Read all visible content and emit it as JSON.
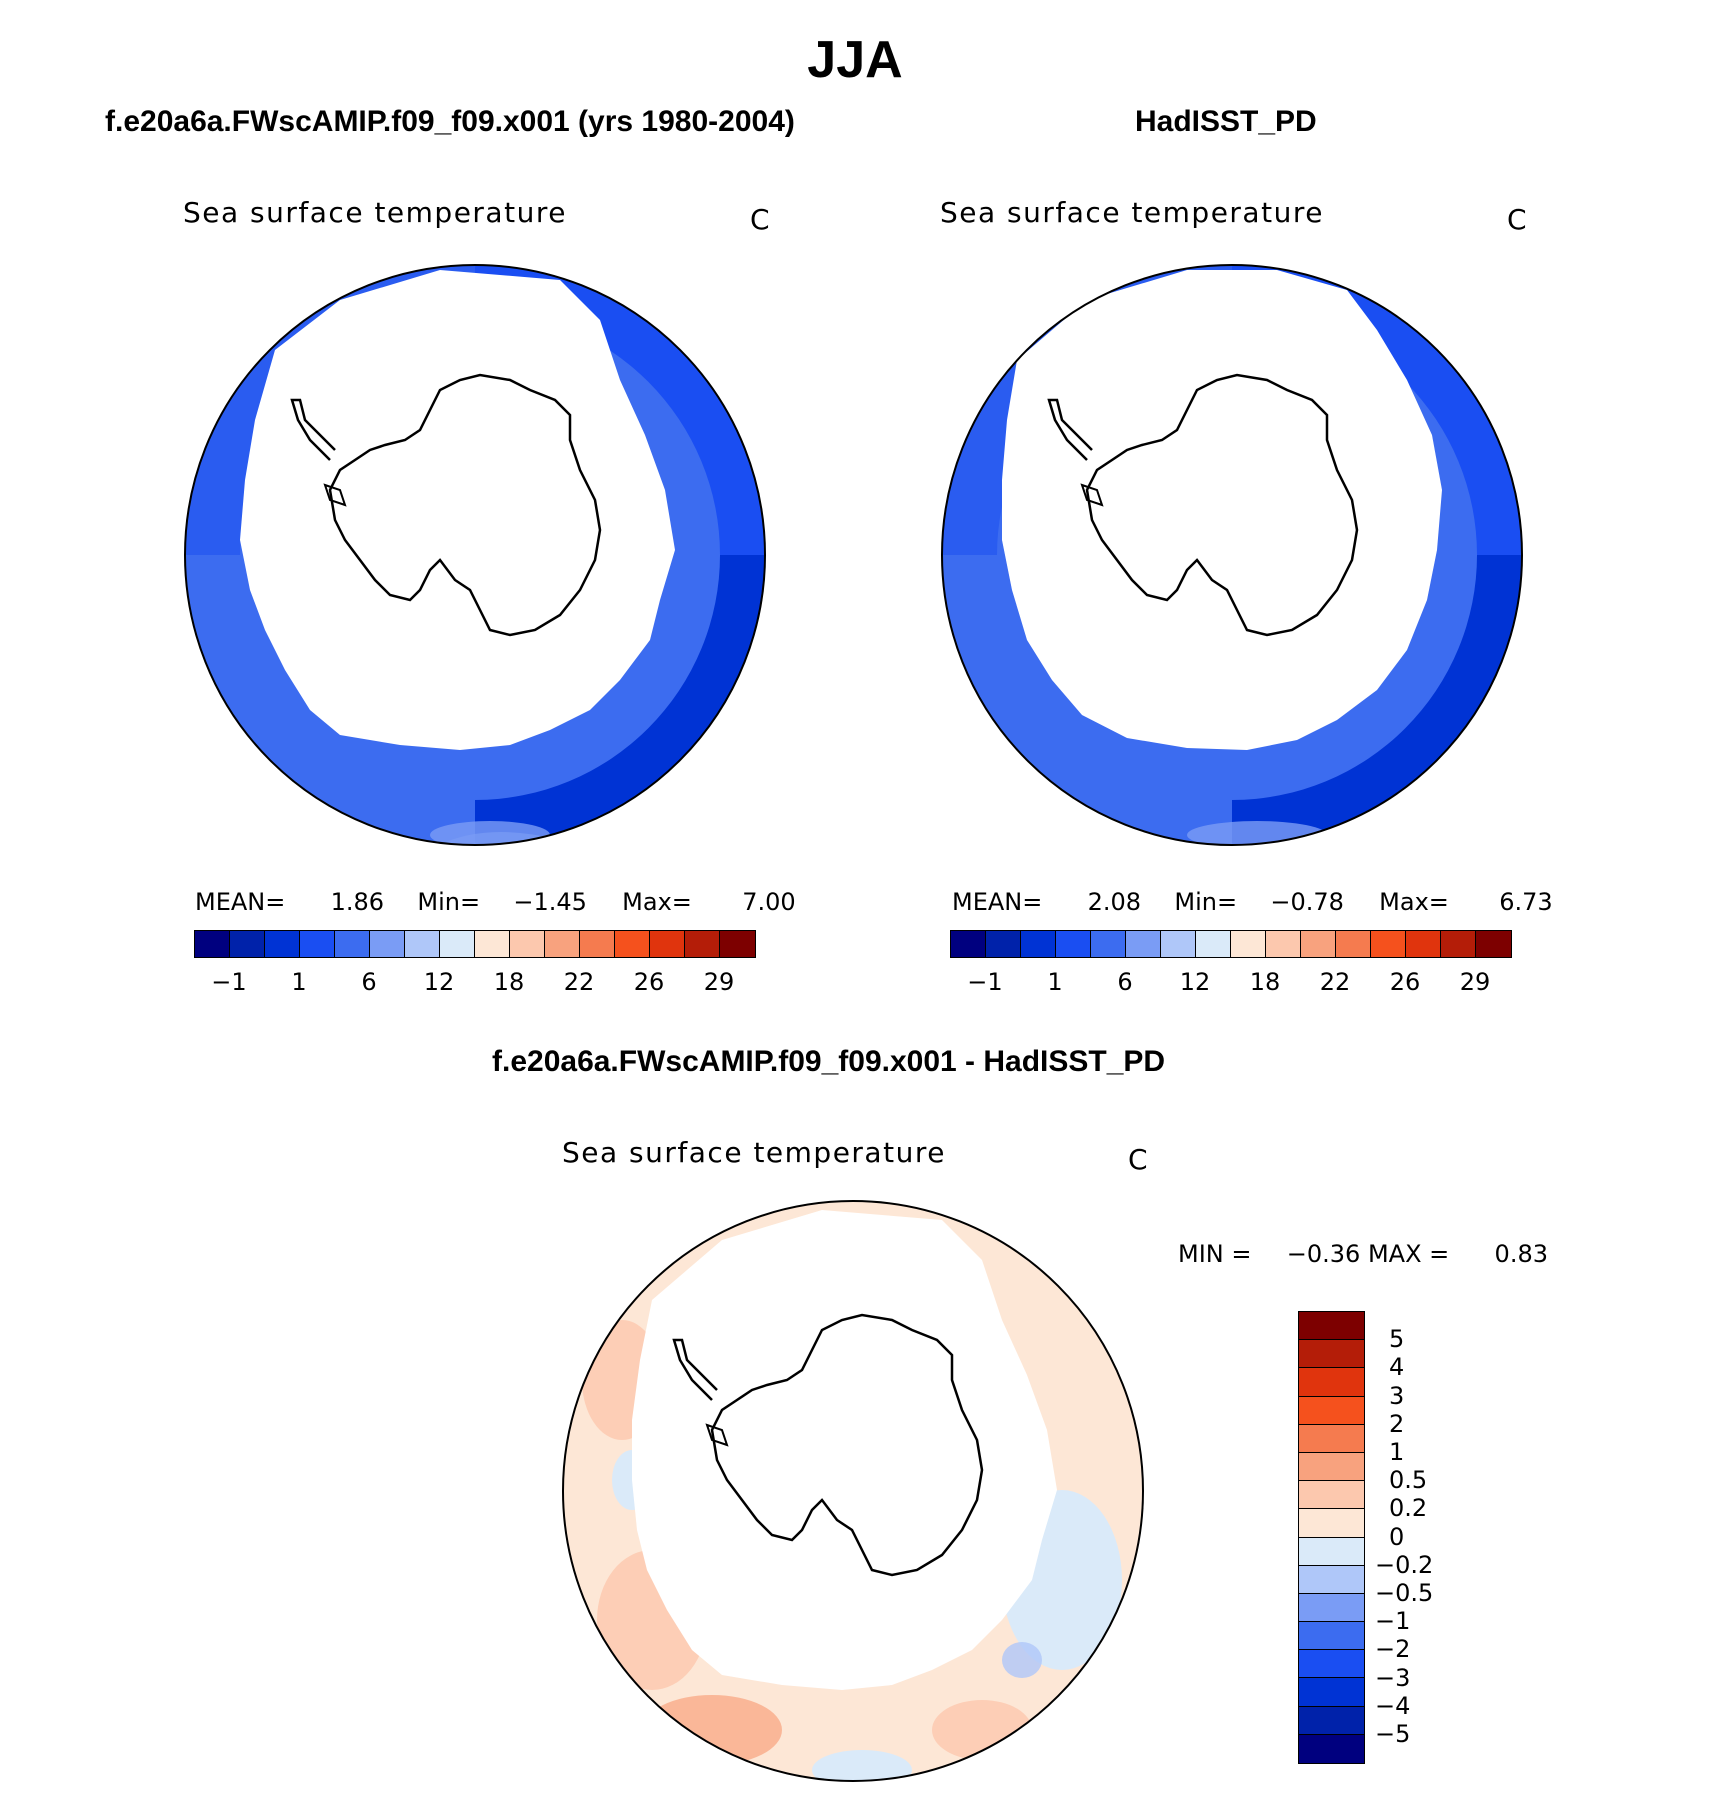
{
  "title": "JJA",
  "panels": {
    "model": {
      "case_title": "f.e20a6a.FWscAMIP.f09_f09.x001 (yrs 1980-2004)",
      "variable": "Sea surface temperature",
      "units": "C",
      "stats": {
        "mean_label": "MEAN=",
        "mean": "1.86",
        "min_label": "Min=",
        "min": "−1.45",
        "max_label": "Max=",
        "max": "7.00"
      }
    },
    "obs": {
      "case_title": "HadISST_PD",
      "variable": "Sea surface temperature",
      "units": "C",
      "stats": {
        "mean_label": "MEAN=",
        "mean": "2.08",
        "min_label": "Min=",
        "min": "−0.78",
        "max_label": "Max=",
        "max": "6.73"
      }
    },
    "diff": {
      "case_title": "f.e20a6a.FWscAMIP.f09_f09.x001 - HadISST_PD",
      "variable": "Sea surface temperature",
      "units": "C",
      "stats": {
        "min_label": "MIN =",
        "min": "−0.36",
        "max_label": "MAX =",
        "max": "0.83"
      }
    }
  },
  "colorbars": {
    "abs": {
      "colors": [
        "#00007f",
        "#0022aa",
        "#0033d4",
        "#1a4ef2",
        "#3c6cf0",
        "#7a9cf5",
        "#afc7f9",
        "#daeaf9",
        "#fde7d6",
        "#fcc8ae",
        "#f8a27e",
        "#f57b4f",
        "#f5511d",
        "#e0340d",
        "#b41d08",
        "#7d0000"
      ],
      "ticks": [
        "−1",
        "1",
        "6",
        "12",
        "18",
        "22",
        "26",
        "29"
      ]
    },
    "diff": {
      "colors": [
        "#7d0000",
        "#b41d08",
        "#e0340d",
        "#f5511d",
        "#f57b4f",
        "#f8a27e",
        "#fcc8ae",
        "#fde7d6",
        "#daeaf9",
        "#afc7f9",
        "#7a9cf5",
        "#3c6cf0",
        "#1a4ef2",
        "#0033d4",
        "#0022aa",
        "#00007f"
      ],
      "ticks": [
        "5",
        "4",
        "3",
        "2",
        "1",
        "0.5",
        "0.2",
        "0",
        "−0.2",
        "−0.5",
        "−1",
        "−2",
        "−3",
        "−4",
        "−5"
      ]
    }
  }
}
